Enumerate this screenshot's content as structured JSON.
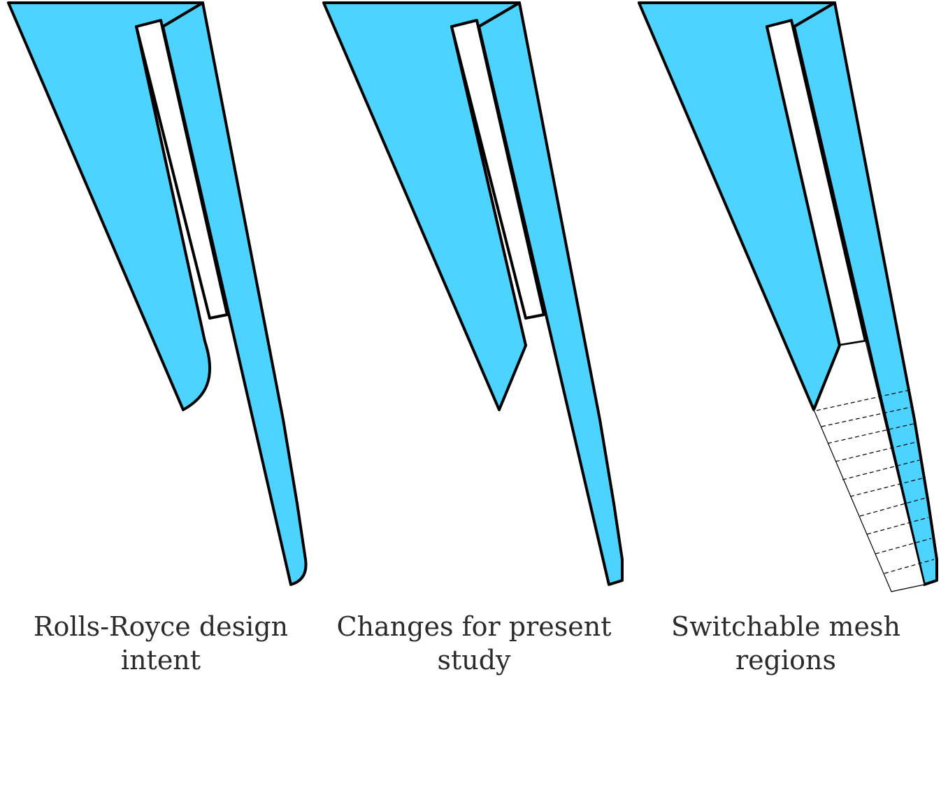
{
  "colors": {
    "fill": "#4dd3ff",
    "stroke": "#000000",
    "text": "#2b2b2b"
  },
  "panels": [
    {
      "caption_line1": "Rolls-Royce design",
      "caption_line2": "intent"
    },
    {
      "caption_line1": "Changes for present",
      "caption_line2": "study"
    },
    {
      "caption_line1": "Switchable mesh",
      "caption_line2": "regions"
    }
  ]
}
